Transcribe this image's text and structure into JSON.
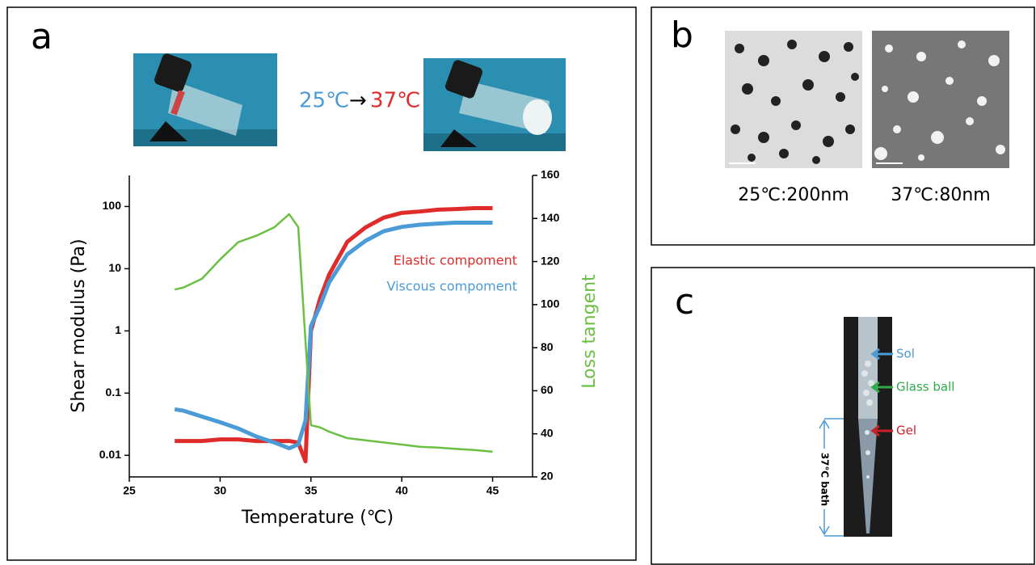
{
  "chart_data": {
    "type": "line",
    "x_label": "Temperature (℃)",
    "y_label": "Shear modulus (Pa)",
    "y2_label": "Loss tangent",
    "x": [
      27.5,
      28,
      29,
      30,
      31,
      32,
      33,
      33.8,
      34.3,
      34.7,
      35,
      35.5,
      36,
      37,
      38,
      39,
      40,
      41,
      42,
      43,
      44,
      45
    ],
    "series": [
      {
        "name": "Elastic compoment",
        "color": "#e02b2b",
        "values": [
          0.017,
          0.017,
          0.017,
          0.018,
          0.018,
          0.017,
          0.017,
          0.017,
          0.016,
          0.008,
          1,
          3.3,
          8,
          27,
          46,
          66,
          79,
          83,
          89,
          91,
          94,
          94
        ]
      },
      {
        "name": "Viscous compoment",
        "color": "#4a9bd6",
        "values": [
          0.055,
          0.052,
          0.042,
          0.034,
          0.027,
          0.02,
          0.016,
          0.013,
          0.015,
          0.036,
          1.2,
          2.5,
          6,
          17,
          28,
          40,
          47,
          51,
          53,
          55,
          55,
          55
        ]
      },
      {
        "name": "Loss tangent",
        "color": "#6cbf45",
        "axis": "y2",
        "values": [
          107,
          108,
          112,
          121,
          129,
          132,
          136,
          142,
          136,
          83,
          44,
          43,
          41,
          38,
          37,
          36,
          35,
          34,
          33.6,
          33,
          32.5,
          31.7
        ]
      }
    ],
    "xlim": [
      25,
      47.2
    ],
    "xticks": [
      25,
      30,
      35,
      40,
      45
    ],
    "ylim": [
      0.0045,
      316
    ],
    "yticks": [
      0.01,
      0.1,
      1,
      10,
      100
    ],
    "y_scale": "log",
    "y2lim": [
      20,
      160
    ],
    "y2ticks": [
      20,
      40,
      60,
      80,
      100,
      120,
      140,
      160
    ]
  },
  "panels": {
    "a": {
      "label": "a",
      "caption_from": "25℃",
      "caption_arrow": "→",
      "caption_to": "37℃"
    },
    "b": {
      "label": "b",
      "captions": [
        "25℃:200nm",
        "37℃:80nm"
      ]
    },
    "c": {
      "label": "c",
      "annotations": [
        "Sol",
        "Glass ball",
        "Gel"
      ],
      "bath": "37℃ bath"
    }
  }
}
